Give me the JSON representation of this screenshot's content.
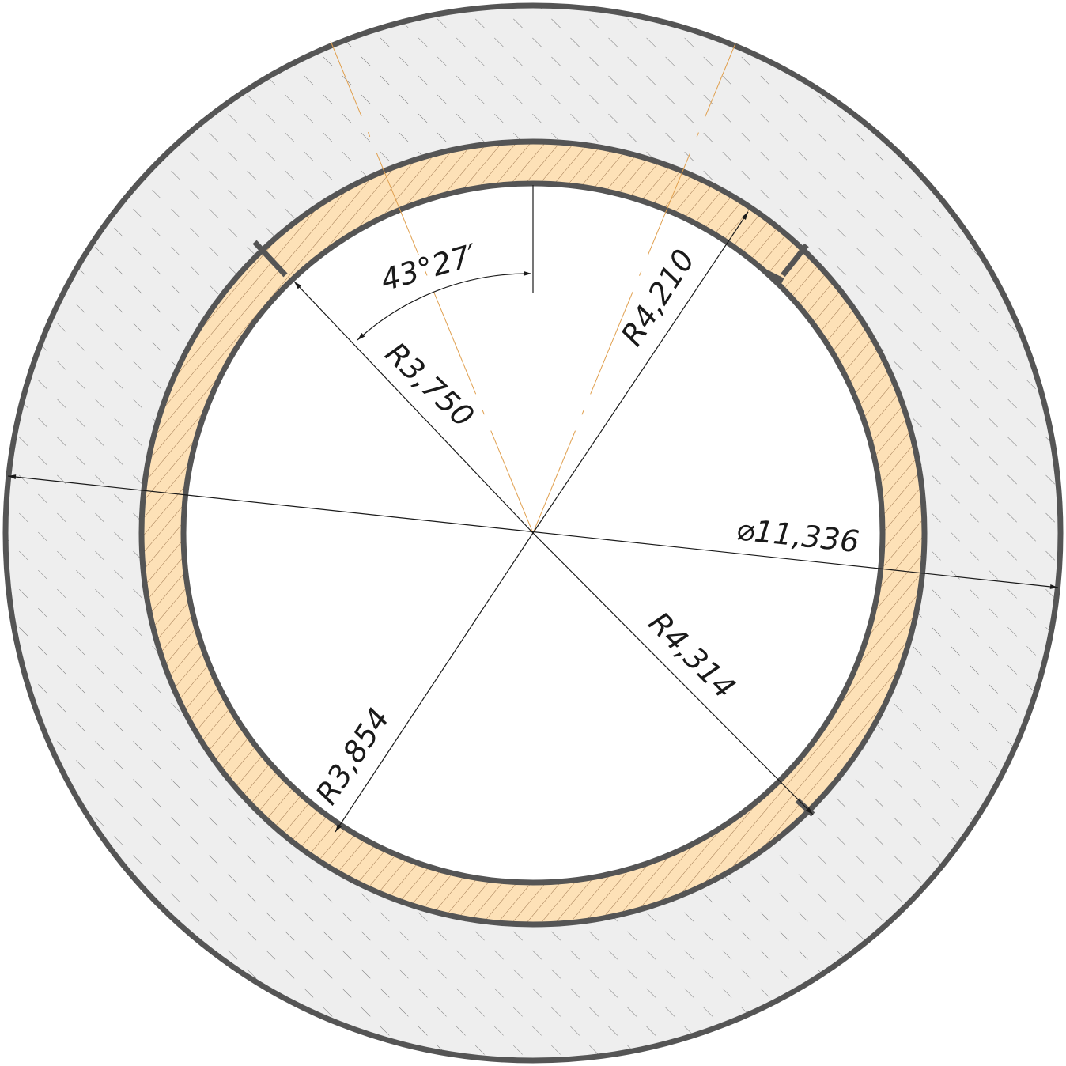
{
  "drawing": {
    "dimensions": {
      "angle": "43°27′",
      "radius_1": "R3,750",
      "radius_2": "R4,210",
      "radius_3": "R3,854",
      "radius_4": "R4,314",
      "diameter": "⌀11,336"
    },
    "colors": {
      "housing_fill": "#eeeeee",
      "ring_fill": "#fde1b7",
      "outline": "#555555",
      "dimension_line": "#1a1a1a",
      "center_line": "#e0a050"
    }
  }
}
